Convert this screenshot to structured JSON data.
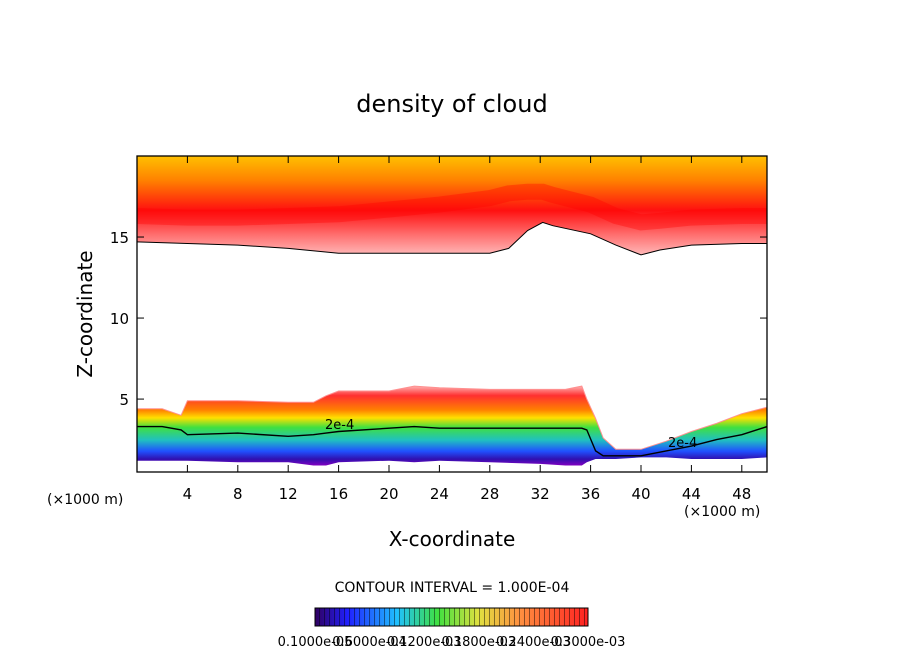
{
  "chart_data": {
    "type": "heatmap",
    "title": "density of cloud",
    "xlabel": "X-coordinate",
    "ylabel": "Z-coordinate",
    "x_unit": "(×1000 m)",
    "y_unit": "(×1000 m)",
    "xlim": [
      0,
      50
    ],
    "ylim": [
      0.5,
      20
    ],
    "x_ticks": [
      4,
      8,
      12,
      16,
      20,
      24,
      28,
      32,
      36,
      40,
      44,
      48
    ],
    "y_ticks": [
      5,
      10,
      15
    ],
    "contour_interval_label": "CONTOUR INTERVAL = 1.000E-04",
    "contour_label": "2e-4",
    "colorbar_labels": [
      "0.1000e-05",
      "0.6000e-04",
      "0.1200e-03",
      "0.1800e-03",
      "0.2400e-03",
      "0.3000e-03"
    ],
    "upper_layer": {
      "x": [
        0,
        4,
        8,
        12,
        16,
        20,
        24,
        28,
        29.5,
        31,
        32.2,
        33,
        36,
        38,
        40,
        41.5,
        44,
        48,
        50
      ],
      "base": [
        14.7,
        14.6,
        14.5,
        14.3,
        14.0,
        14.0,
        14.0,
        14.0,
        14.3,
        15.4,
        15.9,
        15.7,
        15.2,
        14.5,
        13.9,
        14.2,
        14.5,
        14.6,
        14.6
      ],
      "core": [
        16.3,
        16.2,
        16.2,
        16.3,
        16.4,
        16.7,
        17.0,
        17.4,
        17.7,
        17.8,
        17.8,
        17.6,
        17.0,
        16.3,
        15.9,
        16.0,
        16.2,
        16.3,
        16.3
      ]
    },
    "lower_layer": {
      "x": [
        0,
        2,
        3.5,
        4,
        8,
        12,
        14,
        15,
        16,
        20,
        22,
        24,
        28,
        32,
        34,
        35.3,
        35.7,
        36.4,
        37,
        38,
        40,
        42,
        44,
        46,
        48,
        50
      ],
      "top": [
        4.4,
        4.4,
        4.0,
        4.9,
        4.9,
        4.8,
        4.8,
        5.2,
        5.5,
        5.5,
        5.8,
        5.7,
        5.6,
        5.6,
        5.6,
        5.8,
        5.0,
        3.8,
        2.6,
        1.9,
        1.9,
        2.4,
        3.0,
        3.5,
        4.1,
        4.5
      ],
      "bottom": [
        1.2,
        1.2,
        1.2,
        1.2,
        1.1,
        1.1,
        0.9,
        0.9,
        1.1,
        1.2,
        1.1,
        1.2,
        1.1,
        1.0,
        0.9,
        0.9,
        1.1,
        1.3,
        1.3,
        1.3,
        1.4,
        1.4,
        1.3,
        1.3,
        1.3,
        1.4
      ],
      "contour_2e4": [
        3.3,
        3.3,
        3.1,
        2.8,
        2.9,
        2.7,
        2.8,
        2.9,
        3.0,
        3.2,
        3.3,
        3.2,
        3.2,
        3.2,
        3.2,
        3.2,
        3.1,
        1.8,
        1.5,
        1.5,
        1.5,
        1.8,
        2.1,
        2.5,
        2.8,
        3.3
      ]
    }
  }
}
